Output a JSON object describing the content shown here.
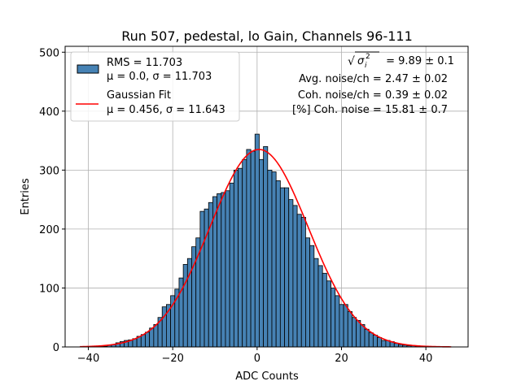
{
  "chart_data": {
    "type": "bar",
    "title": "Run 507, pedestal, lo Gain, Channels 96-111",
    "xlabel": "ADC Counts",
    "ylabel": "Entries",
    "xlim": [
      -45.5,
      50
    ],
    "ylim": [
      0,
      510
    ],
    "xticks": [
      "−40",
      "−20",
      "0",
      "20",
      "40"
    ],
    "xtick_values": [
      -40,
      -20,
      0,
      20,
      40
    ],
    "yticks": [
      "0",
      "100",
      "200",
      "300",
      "400",
      "500"
    ],
    "ytick_values": [
      0,
      100,
      200,
      300,
      400,
      500
    ],
    "grid": true,
    "legend_position": "top-left",
    "bin_width": 1,
    "bins_x": [
      -42,
      -41,
      -40,
      -39,
      -38,
      -37,
      -36,
      -35,
      -34,
      -33,
      -32,
      -31,
      -30,
      -29,
      -28,
      -27,
      -26,
      -25,
      -24,
      -23,
      -22,
      -21,
      -20,
      -19,
      -18,
      -17,
      -16,
      -15,
      -14,
      -13,
      -12,
      -11,
      -10,
      -9,
      -8,
      -7,
      -6,
      -5,
      -4,
      -3,
      -2,
      -1,
      0,
      1,
      2,
      3,
      4,
      5,
      6,
      7,
      8,
      9,
      10,
      11,
      12,
      13,
      14,
      15,
      16,
      17,
      18,
      19,
      20,
      21,
      22,
      23,
      24,
      25,
      26,
      27,
      28,
      29,
      30,
      31,
      32,
      33,
      34,
      35,
      36,
      37,
      38,
      39,
      40,
      41,
      42,
      43,
      44,
      45
    ],
    "bins_counts": [
      0,
      0,
      0,
      0,
      1,
      1,
      1,
      3,
      4,
      7,
      9,
      11,
      12,
      14,
      18,
      21,
      25,
      32,
      38,
      50,
      68,
      72,
      87,
      98,
      117,
      140,
      150,
      170,
      185,
      230,
      234,
      245,
      255,
      260,
      262,
      265,
      278,
      300,
      303,
      318,
      335,
      332,
      361,
      318,
      340,
      300,
      297,
      282,
      270,
      270,
      250,
      240,
      225,
      220,
      185,
      172,
      150,
      138,
      125,
      112,
      100,
      87,
      72,
      72,
      60,
      50,
      45,
      38,
      30,
      24,
      20,
      16,
      11,
      11,
      9,
      6,
      4,
      3,
      2,
      2,
      1,
      1,
      1,
      0,
      0,
      0,
      0,
      0,
      0
    ],
    "series": [
      {
        "name": "RMS = 11.703",
        "detail": "μ = 0.0, σ = 11.703",
        "type": "histogram",
        "color": "#4682b4",
        "edge": "#000000"
      },
      {
        "name": "Gaussian Fit",
        "detail": "μ = 0.456, σ = 11.643",
        "type": "line",
        "color": "#ff0000",
        "mu": 0.456,
        "sigma": 11.643,
        "amplitude": 335,
        "x_range": [
          -42,
          46
        ]
      }
    ],
    "annotations": [
      {
        "prefix": "√",
        "var": "σ",
        "sub": "i",
        "sup": "2",
        "text": " = 9.89 ± 0.1"
      },
      {
        "text": "Avg. noise/ch = 2.47 ± 0.02"
      },
      {
        "text": "Coh. noise/ch = 0.39 ± 0.02"
      },
      {
        "text": "[%] Coh. noise = 15.81 ± 0.7"
      }
    ]
  }
}
